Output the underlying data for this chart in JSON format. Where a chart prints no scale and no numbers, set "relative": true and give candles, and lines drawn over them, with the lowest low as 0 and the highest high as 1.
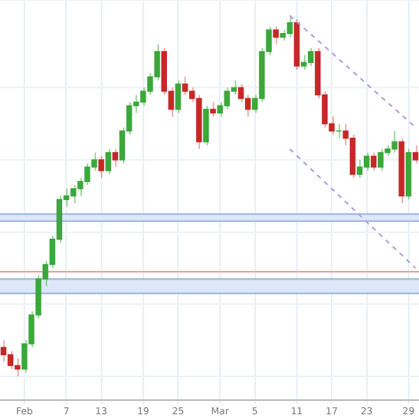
{
  "chart_data": {
    "type": "candlestick",
    "relative": true,
    "grid": true,
    "categories": [
      null,
      null,
      null,
      "Feb",
      null,
      null,
      null,
      null,
      null,
      "7",
      null,
      null,
      null,
      null,
      "13",
      null,
      null,
      null,
      null,
      null,
      "19",
      null,
      null,
      null,
      null,
      "25",
      null,
      null,
      null,
      null,
      null,
      "Mar",
      null,
      null,
      null,
      null,
      "5",
      null,
      null,
      null,
      null,
      null,
      "11",
      null,
      null,
      null,
      null,
      "17",
      null,
      null,
      null,
      null,
      "23",
      null,
      null,
      null,
      null,
      null,
      "29",
      null
    ],
    "ohlc": [
      [
        0.08,
        0.1,
        0.04,
        0.06
      ],
      [
        0.06,
        0.07,
        0.02,
        0.03
      ],
      [
        0.03,
        0.05,
        0,
        0.02
      ],
      [
        0.02,
        0.1,
        0.01,
        0.09
      ],
      [
        0.09,
        0.18,
        0.08,
        0.17
      ],
      [
        0.17,
        0.28,
        0.16,
        0.27
      ],
      [
        0.27,
        0.32,
        0.25,
        0.31
      ],
      [
        0.31,
        0.39,
        0.3,
        0.38
      ],
      [
        0.38,
        0.5,
        0.37,
        0.49
      ],
      [
        0.49,
        0.52,
        0.47,
        0.5
      ],
      [
        0.5,
        0.53,
        0.48,
        0.52
      ],
      [
        0.52,
        0.55,
        0.5,
        0.54
      ],
      [
        0.54,
        0.59,
        0.53,
        0.58
      ],
      [
        0.58,
        0.62,
        0.57,
        0.6
      ],
      [
        0.6,
        0.61,
        0.55,
        0.57
      ],
      [
        0.57,
        0.63,
        0.56,
        0.62
      ],
      [
        0.62,
        0.63,
        0.58,
        0.6
      ],
      [
        0.6,
        0.69,
        0.59,
        0.68
      ],
      [
        0.68,
        0.76,
        0.67,
        0.75
      ],
      [
        0.75,
        0.78,
        0.73,
        0.76
      ],
      [
        0.76,
        0.8,
        0.75,
        0.79
      ],
      [
        0.79,
        0.84,
        0.78,
        0.83
      ],
      [
        0.83,
        0.92,
        0.82,
        0.9
      ],
      [
        0.9,
        0.91,
        0.78,
        0.79
      ],
      [
        0.79,
        0.8,
        0.72,
        0.74
      ],
      [
        0.74,
        0.82,
        0.73,
        0.81
      ],
      [
        0.81,
        0.83,
        0.78,
        0.79
      ],
      [
        0.79,
        0.8,
        0.76,
        0.77
      ],
      [
        0.77,
        0.78,
        0.63,
        0.65
      ],
      [
        0.65,
        0.75,
        0.64,
        0.74
      ],
      [
        0.74,
        0.76,
        0.72,
        0.73
      ],
      [
        0.73,
        0.76,
        0.72,
        0.75
      ],
      [
        0.75,
        0.8,
        0.74,
        0.79
      ],
      [
        0.79,
        0.82,
        0.78,
        0.8
      ],
      [
        0.8,
        0.81,
        0.76,
        0.77
      ],
      [
        0.77,
        0.78,
        0.72,
        0.74
      ],
      [
        0.74,
        0.78,
        0.73,
        0.77
      ],
      [
        0.77,
        0.91,
        0.76,
        0.9
      ],
      [
        0.9,
        0.97,
        0.89,
        0.96
      ],
      [
        0.96,
        0.97,
        0.92,
        0.94
      ],
      [
        0.94,
        0.96,
        0.93,
        0.95
      ],
      [
        0.95,
        1,
        0.94,
        0.98
      ],
      [
        0.98,
        0.99,
        0.85,
        0.86
      ],
      [
        0.86,
        0.89,
        0.85,
        0.87
      ],
      [
        0.87,
        0.91,
        0.86,
        0.9
      ],
      [
        0.9,
        0.91,
        0.77,
        0.78
      ],
      [
        0.78,
        0.79,
        0.69,
        0.7
      ],
      [
        0.7,
        0.72,
        0.67,
        0.68
      ],
      [
        0.68,
        0.7,
        0.66,
        0.68
      ],
      [
        0.68,
        0.7,
        0.64,
        0.66
      ],
      [
        0.66,
        0.67,
        0.55,
        0.56
      ],
      [
        0.56,
        0.6,
        0.55,
        0.58
      ],
      [
        0.58,
        0.62,
        0.57,
        0.61
      ],
      [
        0.61,
        0.62,
        0.57,
        0.58
      ],
      [
        0.58,
        0.63,
        0.57,
        0.62
      ],
      [
        0.62,
        0.64,
        0.61,
        0.63
      ],
      [
        0.63,
        0.68,
        0.62,
        0.65
      ],
      [
        0.65,
        0.66,
        0.48,
        0.5
      ],
      [
        0.5,
        0.63,
        0.49,
        0.62
      ],
      [
        0.62,
        0.64,
        0.59,
        0.6
      ]
    ],
    "series": [
      {
        "type": "line",
        "color": "#b39ddb",
        "line_style": "dashed",
        "values": [
          null,
          null,
          null,
          null,
          null,
          null,
          null,
          null,
          null,
          null,
          null,
          null,
          null,
          null,
          null,
          null,
          null,
          null,
          null,
          null,
          null,
          null,
          null,
          null,
          null,
          null,
          null,
          null,
          null,
          null,
          null,
          null,
          null,
          null,
          null,
          null,
          null,
          null,
          null,
          null,
          null,
          1,
          null,
          null,
          null,
          null,
          null,
          null,
          null,
          null,
          null,
          null,
          null,
          null,
          null,
          null,
          null,
          null,
          null,
          0.69
        ]
      },
      {
        "type": "line",
        "color": "#b39ddb",
        "line_style": "dashed",
        "values": [
          null,
          null,
          null,
          null,
          null,
          null,
          null,
          null,
          null,
          null,
          null,
          null,
          null,
          null,
          null,
          null,
          null,
          null,
          null,
          null,
          null,
          null,
          null,
          null,
          null,
          null,
          null,
          null,
          null,
          null,
          null,
          null,
          null,
          null,
          null,
          null,
          null,
          null,
          null,
          null,
          null,
          0.63,
          null,
          null,
          null,
          null,
          null,
          null,
          null,
          null,
          null,
          null,
          null,
          null,
          null,
          null,
          null,
          null,
          null,
          0.3
        ]
      }
    ],
    "bands": [
      {
        "axis": "y",
        "from": 0.43,
        "to": 0.45,
        "color": "#dce8f7"
      },
      {
        "axis": "y",
        "from": 0.23,
        "to": 0.27,
        "color": "#dce8f7"
      }
    ],
    "ref_lines": [
      {
        "axis": "y",
        "value": 0.29,
        "color": "#e8a0a0"
      },
      {
        "axis": "y",
        "value": 0.45,
        "color": "#9db3dc"
      },
      {
        "axis": "y",
        "value": 0.43,
        "color": "#9db3dc"
      },
      {
        "axis": "y",
        "value": 0.27,
        "color": "#9db3dc"
      },
      {
        "axis": "y",
        "value": 0.23,
        "color": "#9db3dc"
      }
    ]
  }
}
